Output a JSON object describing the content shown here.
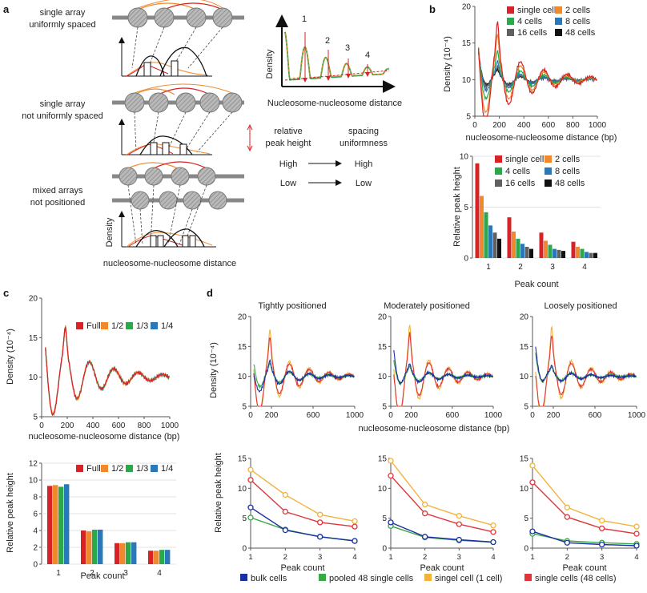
{
  "colors": {
    "single_cell": "#d72326",
    "cells2": "#ef8a2c",
    "cells4": "#2aa84a",
    "cells8": "#2b78b8",
    "cells16": "#606060",
    "cells48": "#111111",
    "bulk": "#1c2fa0",
    "pooled": "#3aa845",
    "singel": "#f2b33d",
    "single48": "#e0353a"
  },
  "panel_a": {
    "label": "a",
    "row1_label_1": "single array",
    "row1_label_2": "uniformly spaced",
    "row2_label_1": "single array",
    "row2_label_2": "not uniformly spaced",
    "row3_label_1": "mixed arrays",
    "row3_label_2": "not positioned",
    "density_label": "Density",
    "xaxis_label": "nucleosome-nucleosome distance",
    "schematic_ylabel": "Density",
    "schematic_xlabel": "Nucleosome-nucleosome distance",
    "peak_numbers": [
      "1",
      "2",
      "3",
      "4"
    ],
    "legend_left_1": "relative",
    "legend_left_2": "peak height",
    "legend_right_1": "spacing",
    "legend_right_2": "uniformness",
    "high_left": "High",
    "high_right": "High",
    "low_left": "Low",
    "low_right": "Low"
  },
  "panel_b": {
    "label": "b",
    "top_ylabel": "Density (10⁻⁴)",
    "top_xlabel": "nucleosome-nucleosome distance (bp)",
    "bottom_ylabel": "Relative peak height",
    "bottom_xlabel": "Peak count",
    "legend": [
      "single cell",
      "2 cells",
      "4 cells",
      "8 cells",
      "16 cells",
      "48 cells"
    ]
  },
  "panel_c": {
    "label": "c",
    "top_ylabel": "Density (10⁻⁴)",
    "top_xlabel": "nucleosome-nucleosome distance (bp)",
    "bottom_ylabel": "Relative peak height",
    "bottom_xlabel": "Peak count",
    "legend": [
      "Full",
      "1/2",
      "1/3",
      "1/4"
    ]
  },
  "panel_d": {
    "label": "d",
    "titles": [
      "Tightly positioned",
      "Moderately positioned",
      "Loosely positioned"
    ],
    "top_ylabel": "Density (10⁻⁴)",
    "top_xlabel": "nucleosome-nucleosome distance (bp)",
    "bottom_ylabel": "Relative peak height",
    "bottom_xlabel": "Peak count",
    "legend": [
      "bulk cells",
      "pooled 48 single cells",
      "singel cell (1 cell)",
      "single cells (48 cells)"
    ]
  },
  "chart_data": [
    {
      "id": "b-density",
      "type": "line",
      "xlabel": "nucleosome-nucleosome distance (bp)",
      "ylabel": "Density (10⁻⁴)",
      "xlim": [
        0,
        1000
      ],
      "ylim": [
        5,
        20
      ],
      "xticks": [
        0,
        200,
        400,
        600,
        800,
        1000
      ],
      "yticks": [
        5,
        10,
        15,
        20
      ],
      "series_names": [
        "single cell",
        "2 cells",
        "4 cells",
        "8 cells",
        "16 cells",
        "48 cells"
      ],
      "peak_amp": [
        4.5,
        3.5,
        2.2,
        1.4,
        1.0,
        0.8
      ],
      "start_values": [
        12.5,
        13.5,
        14.5,
        15.0,
        15.0,
        15.0
      ]
    },
    {
      "id": "b-bars",
      "type": "bar",
      "categories": [
        "1",
        "2",
        "3",
        "4"
      ],
      "xlabel": "Peak count",
      "ylabel": "Relative peak height",
      "ylim": [
        0,
        10
      ],
      "yticks": [
        0,
        5,
        10
      ],
      "series": [
        {
          "name": "single cell",
          "values": [
            9.3,
            4.0,
            2.5,
            1.6
          ]
        },
        {
          "name": "2 cells",
          "values": [
            6.1,
            2.6,
            1.7,
            1.1
          ]
        },
        {
          "name": "4 cells",
          "values": [
            4.5,
            1.9,
            1.3,
            0.9
          ]
        },
        {
          "name": "8 cells",
          "values": [
            3.2,
            1.4,
            0.9,
            0.6
          ]
        },
        {
          "name": "16 cells",
          "values": [
            2.5,
            1.1,
            0.8,
            0.5
          ]
        },
        {
          "name": "48 cells",
          "values": [
            1.9,
            0.9,
            0.7,
            0.5
          ]
        }
      ]
    },
    {
      "id": "c-density",
      "type": "line",
      "xlabel": "nucleosome-nucleosome distance (bp)",
      "ylabel": "Density (10⁻⁴)",
      "xlim": [
        0,
        1000
      ],
      "ylim": [
        5,
        20
      ],
      "xticks": [
        0,
        200,
        400,
        600,
        800,
        1000
      ],
      "yticks": [
        5,
        10,
        15,
        20
      ],
      "series_names": [
        "Full",
        "1/2",
        "1/3",
        "1/4"
      ]
    },
    {
      "id": "c-bars",
      "type": "bar",
      "categories": [
        "1",
        "2",
        "3",
        "4"
      ],
      "xlabel": "Peak count",
      "ylabel": "Relative peak height",
      "ylim": [
        0,
        12
      ],
      "yticks": [
        0,
        2,
        4,
        6,
        8,
        10,
        12
      ],
      "series": [
        {
          "name": "Full",
          "values": [
            9.3,
            4.0,
            2.5,
            1.6
          ]
        },
        {
          "name": "1/2",
          "values": [
            9.4,
            3.9,
            2.5,
            1.6
          ]
        },
        {
          "name": "1/3",
          "values": [
            9.2,
            4.1,
            2.6,
            1.7
          ]
        },
        {
          "name": "1/4",
          "values": [
            9.5,
            4.1,
            2.6,
            1.7
          ]
        }
      ]
    },
    {
      "id": "d-density",
      "type": "line",
      "xlabel": "nucleosome-nucleosome distance (bp)",
      "ylabel": "Density (10⁻⁴)",
      "xlim": [
        0,
        1000
      ],
      "ylim": [
        5,
        20
      ],
      "xticks": [
        0,
        200,
        600,
        1000
      ],
      "yticks": [
        5,
        10,
        15,
        20
      ],
      "series_names": [
        "bulk cells",
        "pooled 48 single cells",
        "singel cell (1 cell)",
        "single cells (48 cells)"
      ]
    },
    {
      "id": "d-lines",
      "type": "line",
      "categories": [
        "1",
        "2",
        "3",
        "4"
      ],
      "xlabel": "Peak count",
      "ylabel": "Relative peak height",
      "ylim": [
        0,
        15
      ],
      "yticks": [
        0,
        5,
        10,
        15
      ],
      "panels": [
        {
          "title": "Tightly positioned",
          "series": [
            {
              "name": "bulk cells",
              "values": [
                6.8,
                3.0,
                1.9,
                1.2
              ]
            },
            {
              "name": "pooled 48 single cells",
              "values": [
                5.1,
                3.1,
                1.9,
                1.2
              ]
            },
            {
              "name": "singel cell (1 cell)",
              "values": [
                13.1,
                8.9,
                5.6,
                4.5
              ]
            },
            {
              "name": "single cells (48 cells)",
              "values": [
                11.4,
                6.1,
                4.3,
                3.6
              ]
            }
          ]
        },
        {
          "title": "Moderately positioned",
          "series": [
            {
              "name": "bulk cells",
              "values": [
                4.3,
                1.9,
                1.4,
                1.0
              ]
            },
            {
              "name": "pooled 48 single cells",
              "values": [
                3.7,
                1.8,
                1.3,
                1.0
              ]
            },
            {
              "name": "singel cell (1 cell)",
              "values": [
                14.6,
                7.3,
                5.4,
                3.8
              ]
            },
            {
              "name": "single cells (48 cells)",
              "values": [
                12.1,
                5.8,
                4.0,
                2.7
              ]
            }
          ]
        },
        {
          "title": "Loosely positioned",
          "series": [
            {
              "name": "bulk cells",
              "values": [
                2.8,
                0.9,
                0.6,
                0.4
              ]
            },
            {
              "name": "pooled 48 single cells",
              "values": [
                2.4,
                1.2,
                0.9,
                0.7
              ]
            },
            {
              "name": "singel cell (1 cell)",
              "values": [
                13.8,
                6.8,
                4.6,
                3.6
              ]
            },
            {
              "name": "single cells (48 cells)",
              "values": [
                11.0,
                5.2,
                3.3,
                2.4
              ]
            }
          ]
        }
      ]
    }
  ]
}
